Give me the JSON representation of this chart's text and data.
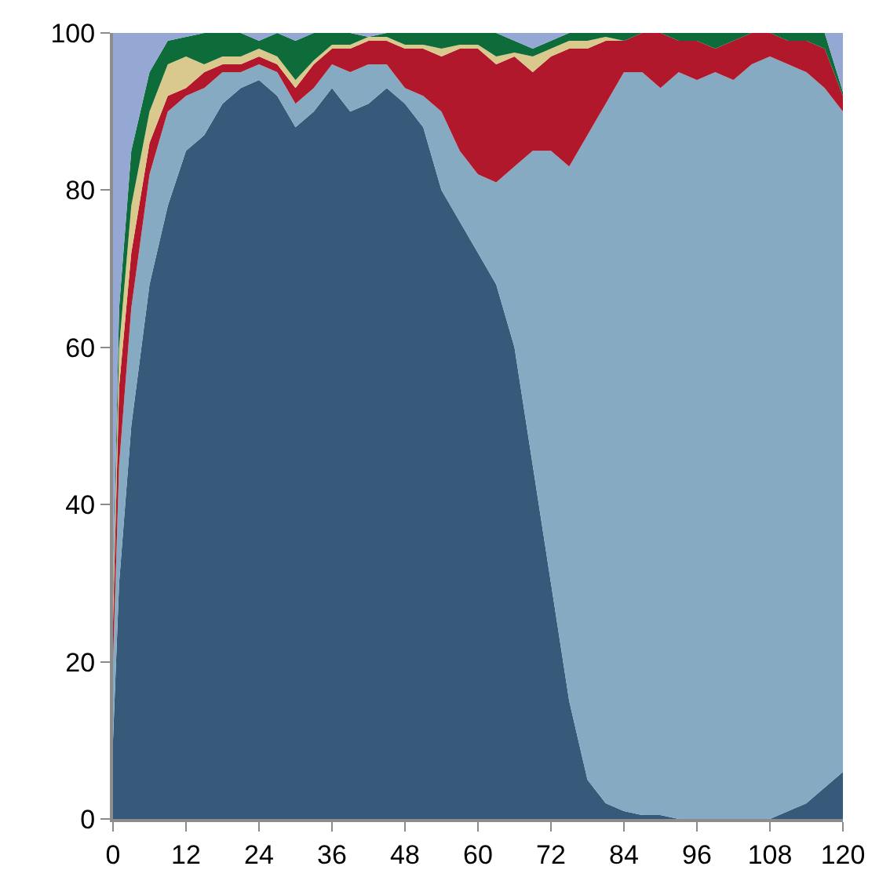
{
  "chart_data": {
    "type": "area",
    "stacked": true,
    "x": [
      0,
      1,
      3,
      6,
      9,
      12,
      15,
      18,
      21,
      24,
      27,
      30,
      33,
      36,
      39,
      42,
      45,
      48,
      51,
      54,
      57,
      60,
      63,
      66,
      69,
      72,
      75,
      78,
      81,
      84,
      87,
      90,
      93,
      96,
      99,
      102,
      105,
      108,
      111,
      114,
      117,
      120
    ],
    "series": [
      {
        "color": "#375a7a",
        "values": [
          10,
          30,
          50,
          68,
          78,
          85,
          87,
          91,
          93,
          94,
          92,
          88,
          90,
          93,
          90,
          91,
          93,
          91,
          88,
          80,
          76,
          72,
          68,
          60,
          45,
          30,
          15,
          5,
          2,
          1,
          0.5,
          0.5,
          0,
          0,
          0,
          0,
          0,
          0,
          1,
          2,
          4,
          6
        ]
      },
      {
        "color": "#87aac3",
        "values": [
          10,
          15,
          15,
          14,
          12,
          7,
          6,
          4,
          2,
          2,
          3,
          3,
          3,
          3,
          5,
          5,
          3,
          2,
          4,
          10,
          9,
          10,
          13,
          23,
          40,
          55,
          68,
          82,
          89,
          94,
          94.5,
          92.5,
          95,
          94,
          95,
          94,
          96,
          97,
          95,
          93,
          89,
          84
        ]
      },
      {
        "color": "#b2182b",
        "values": [
          5,
          10,
          7,
          4,
          2,
          1,
          2,
          1,
          1,
          1,
          1,
          2,
          3,
          2,
          3,
          3,
          3,
          5,
          6,
          7,
          13,
          16,
          15,
          14,
          10,
          12,
          15,
          11,
          8,
          4,
          5,
          7,
          4,
          5,
          3,
          5,
          4,
          3,
          3,
          4,
          5,
          2
        ]
      },
      {
        "color": "#d9c98d",
        "values": [
          3,
          5,
          6,
          4,
          4,
          4,
          1,
          1,
          1,
          1,
          1,
          1,
          0.5,
          0.5,
          0.5,
          0.5,
          0.5,
          0.5,
          0.5,
          1,
          0.5,
          0.5,
          1,
          0.5,
          2,
          1,
          1,
          1,
          0.5,
          0,
          0,
          0,
          0,
          0,
          0,
          0,
          0,
          0,
          0,
          0,
          0,
          0
        ]
      },
      {
        "color": "#0e6b3a",
        "values": [
          2,
          5,
          7,
          5,
          3,
          2.5,
          4,
          3,
          3,
          1,
          3,
          5,
          3.5,
          1.5,
          1.5,
          0,
          0.5,
          1.5,
          1.5,
          2,
          1.5,
          1.5,
          3,
          1.5,
          1,
          1,
          1,
          1,
          0.5,
          1,
          0,
          0,
          1,
          1,
          2,
          1,
          0,
          0,
          1,
          1,
          2,
          0.5
        ]
      },
      {
        "color": "#95a8d3",
        "values": [
          70,
          35,
          15,
          5,
          1,
          0.5,
          0,
          0,
          0,
          1,
          0,
          1,
          0,
          0,
          0,
          0.5,
          0,
          0,
          0,
          0,
          0,
          0,
          0,
          1,
          2,
          1,
          0,
          0,
          0,
          0,
          0,
          0,
          0,
          0,
          0,
          0,
          0,
          0,
          0,
          0,
          0,
          7.5
        ]
      }
    ],
    "xlim": [
      0,
      120
    ],
    "xticks": [
      0,
      12,
      24,
      36,
      48,
      60,
      72,
      84,
      96,
      108,
      120
    ],
    "ylim": [
      0,
      100
    ],
    "yticks": [
      0,
      20,
      40,
      60,
      80,
      100
    ]
  }
}
